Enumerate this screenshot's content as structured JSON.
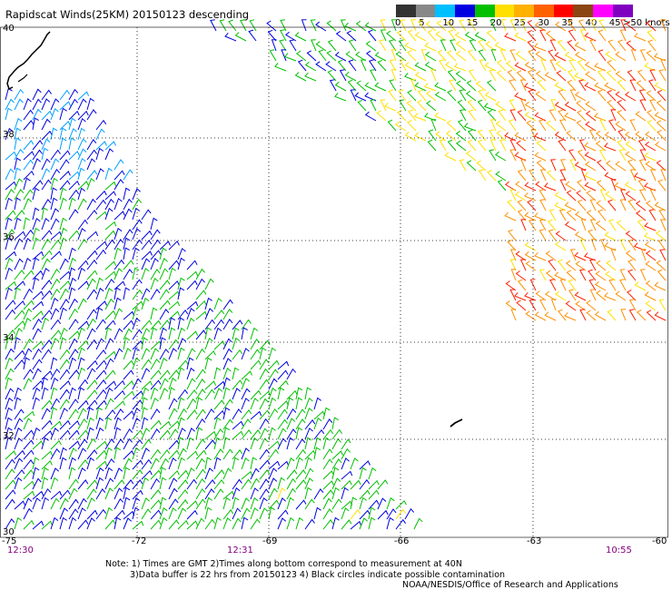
{
  "title": "Rapidscat Winds(25KM) 20150123 descending",
  "scale": {
    "colors": [
      "#333333",
      "#888888",
      "#00bfff",
      "#0000e0",
      "#00c000",
      "#ffe000",
      "#ffb000",
      "#ff6000",
      "#ff0000",
      "#8b4513",
      "#ff00ff",
      "#8000c0"
    ],
    "labels": [
      "0",
      "5",
      "10",
      "15",
      "20",
      "25",
      "30",
      "35",
      "40",
      "45",
      ">50 knots"
    ],
    "unit": ">50 knots"
  },
  "map": {
    "lat_labels": [
      "40",
      "38",
      "36",
      "34",
      "32",
      "30"
    ],
    "lon_labels": [
      "-75",
      "-72",
      "-69",
      "-66",
      "-63",
      "-60"
    ],
    "times": [
      "12:30",
      "12:31",
      "10:55"
    ],
    "lat_range": [
      30,
      40
    ],
    "lon_range": [
      -75,
      -60
    ]
  },
  "notes": {
    "line1": "Note: 1) Times are GMT 2)Times along bottom correspond to measurement at 40N",
    "line2": "3)Data buffer is 22 hrs from 20150123 4) Black circles indicate possible contamination",
    "line3": "NOAA/NESDIS/Office of Research and Applications"
  },
  "colors": {
    "blue": "#0000e0",
    "cyan": "#00a0ff",
    "green": "#00c000",
    "yellow": "#ffe000",
    "orange": "#ff9000",
    "red": "#ff2000"
  }
}
